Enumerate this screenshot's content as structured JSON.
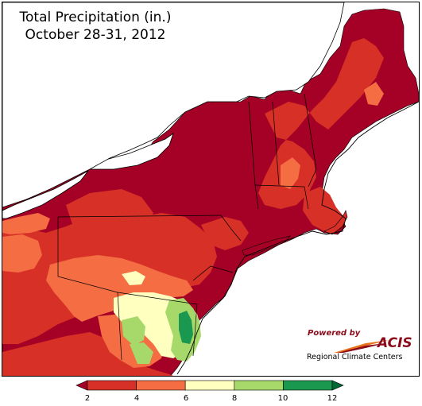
{
  "title": {
    "line1": "Total Precipitation (in.)",
    "line2": "October 28-31, 2012"
  },
  "map": {
    "region": "Northeast United States",
    "water_color": "#ffffff",
    "boundary_color": "#000000",
    "category_colors": {
      "2-4": "#b5101e",
      "4-6": "#d93b2b",
      "6-8": "#f7a35c",
      "8-10": "#ffffc0",
      "10-12": "#a6d96a",
      "12+": "#1a9641"
    },
    "deep_red": "#a50026"
  },
  "logo": {
    "powered_by": "Powered by",
    "name": "ACIS",
    "subtitle": "Regional Climate Centers",
    "color": "#8b0a1a",
    "swoosh_color": "#e8731a"
  },
  "legend": {
    "tick_labels": [
      "2",
      "4",
      "6",
      "8",
      "10",
      "12"
    ],
    "bins": [
      {
        "from": 2,
        "to": 4,
        "color": "#d73027"
      },
      {
        "from": 4,
        "to": 6,
        "color": "#f46d43"
      },
      {
        "from": 6,
        "to": 8,
        "color": "#ffffbf"
      },
      {
        "from": 8,
        "to": 10,
        "color": "#a6d96a"
      },
      {
        "from": 10,
        "to": 12,
        "color": "#1a9850"
      }
    ],
    "under_color": "#a50026",
    "over_color": "#006837"
  }
}
